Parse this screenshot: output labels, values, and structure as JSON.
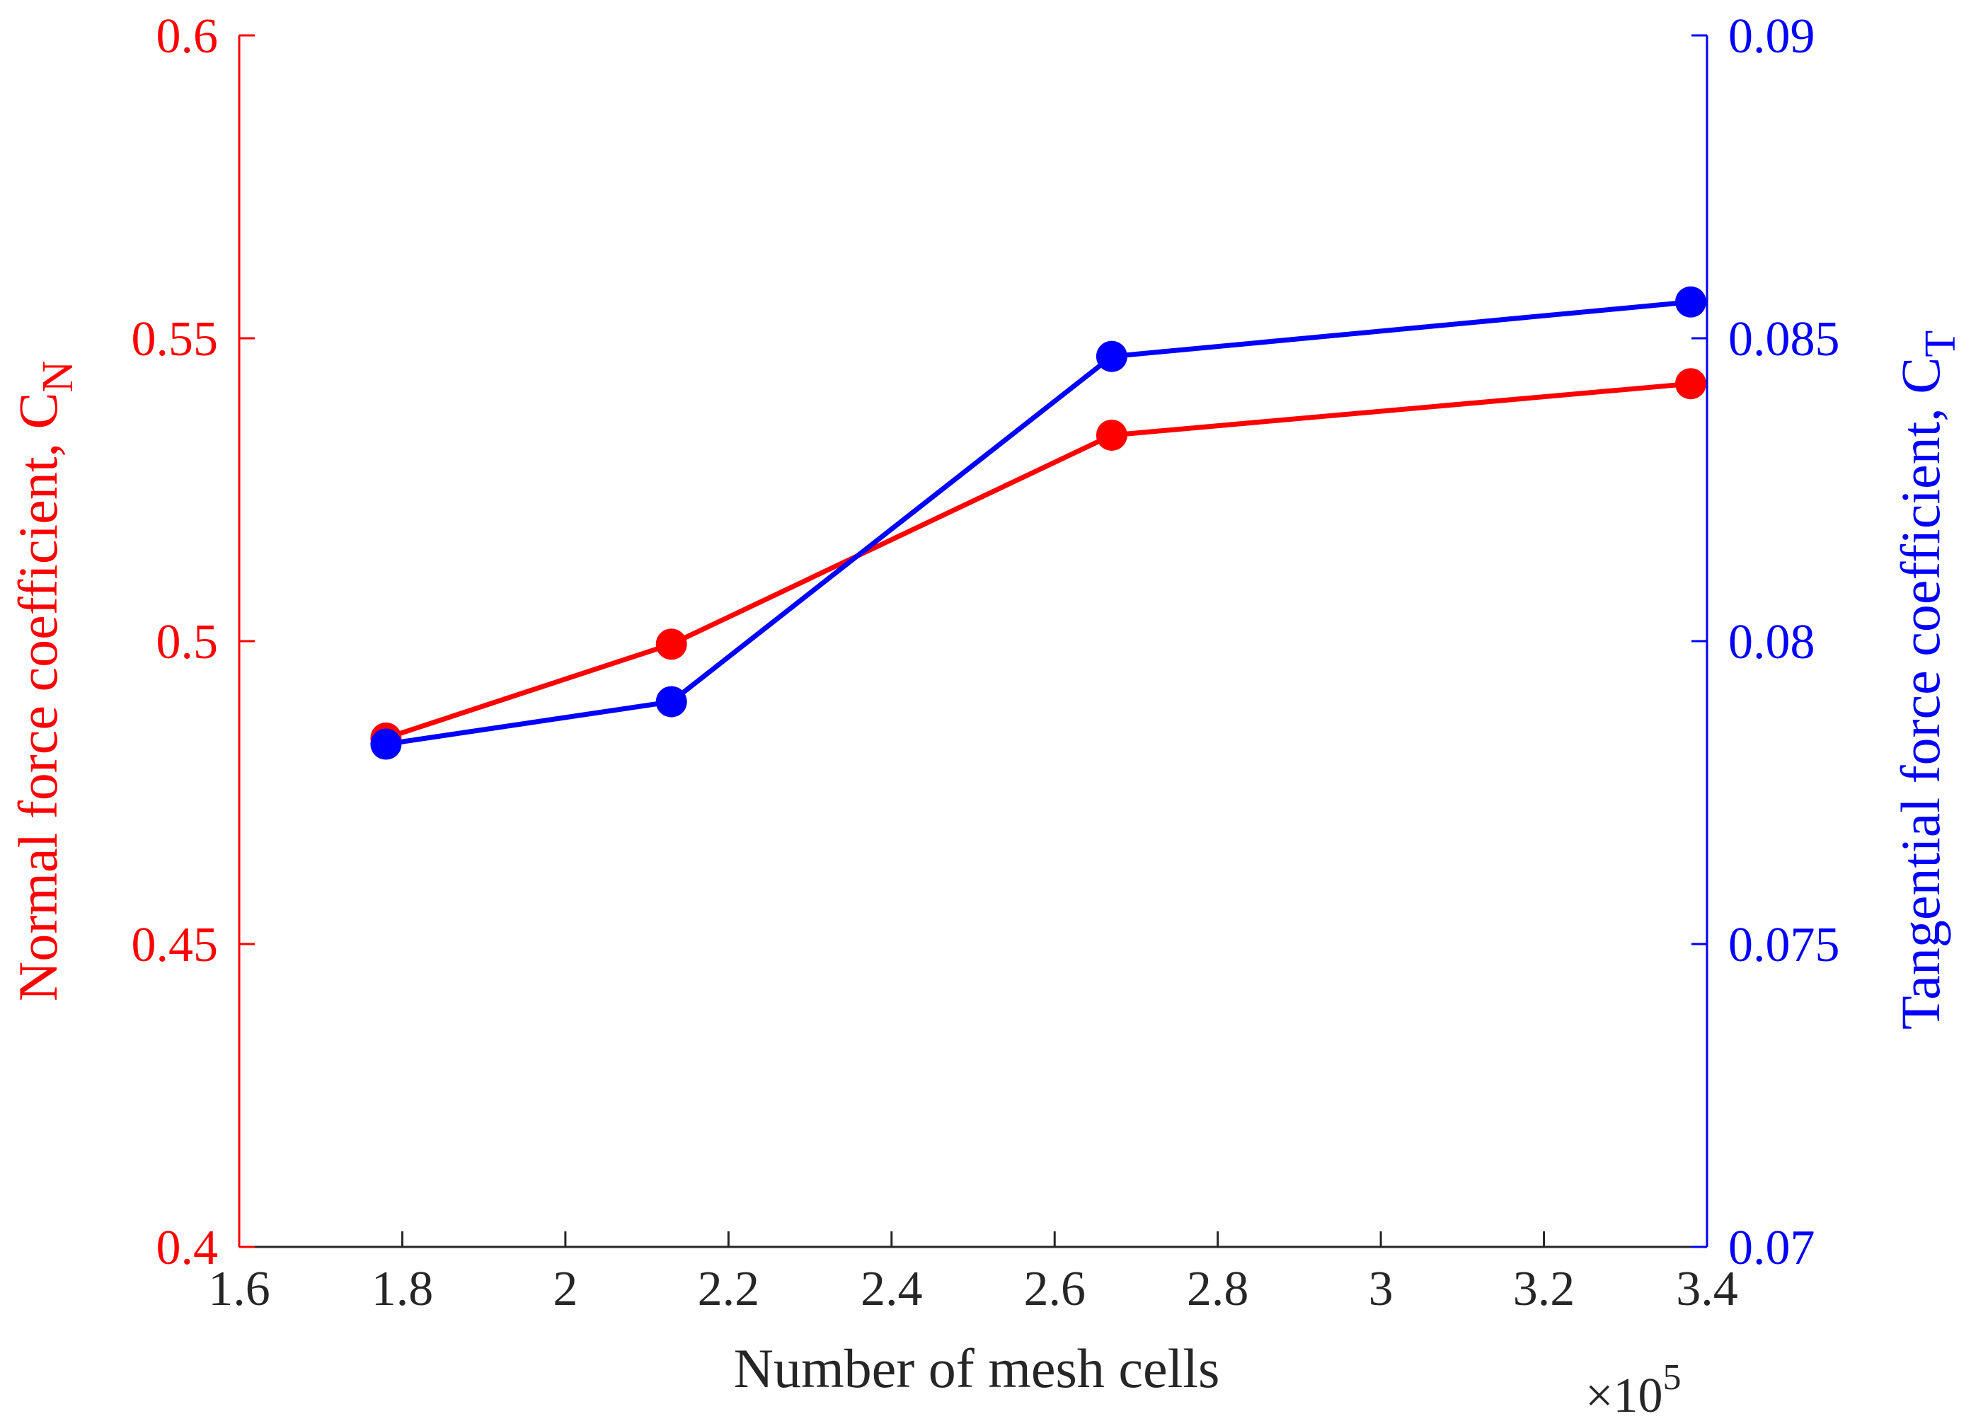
{
  "chart_data": {
    "type": "line",
    "title": "",
    "xlabel": "Number of mesh cells",
    "x_multiplier": {
      "base": "×10",
      "exp": "5"
    },
    "xlim": [
      1.6,
      3.4
    ],
    "x_ticks": [
      1.6,
      1.8,
      2.0,
      2.2,
      2.4,
      2.6,
      2.8,
      3.0,
      3.2,
      3.4
    ],
    "x_tick_labels": [
      "1.6",
      "1.8",
      "2",
      "2.2",
      "2.4",
      "2.6",
      "2.8",
      "3",
      "3.2",
      "3.4"
    ],
    "grid": false,
    "legend": "none",
    "left_axis": {
      "label_main": "Normal force coefficient, C",
      "label_sub": "N",
      "color": "#ff0000",
      "ylim": [
        0.4,
        0.6
      ],
      "ticks": [
        0.4,
        0.45,
        0.5,
        0.55,
        0.6
      ],
      "tick_labels": [
        "0.4",
        "0.45",
        "0.5",
        "0.55",
        "0.6"
      ]
    },
    "right_axis": {
      "label_main": "Tangential force coefficient, C",
      "label_sub": "T",
      "color": "#0000ff",
      "ylim": [
        0.07,
        0.09
      ],
      "ticks": [
        0.07,
        0.075,
        0.08,
        0.085,
        0.09
      ],
      "tick_labels": [
        "0.07",
        "0.075",
        "0.08",
        "0.085",
        "0.09"
      ]
    },
    "series": [
      {
        "name": "CN",
        "axis": "left",
        "color": "#ff0000",
        "x": [
          1.78,
          2.13,
          2.67,
          3.38
        ],
        "values": [
          0.484,
          0.4995,
          0.534,
          0.5425
        ]
      },
      {
        "name": "CT",
        "axis": "right",
        "color": "#0000ff",
        "x": [
          1.78,
          2.13,
          2.67,
          3.38
        ],
        "values": [
          0.0783,
          0.079,
          0.0847,
          0.0856
        ]
      }
    ]
  }
}
